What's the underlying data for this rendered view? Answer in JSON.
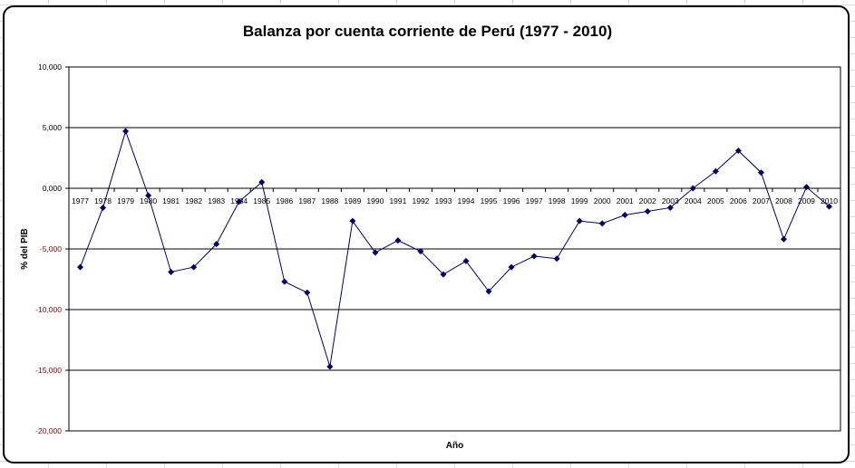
{
  "chart_data": {
    "type": "line",
    "title": "Balanza por cuenta corriente de Perú (1977 - 2010)",
    "xlabel": "Año",
    "ylabel": "% del PIB",
    "ylim": [
      -20,
      10
    ],
    "grid": true,
    "legend": "none",
    "yticks": [
      {
        "value": 10,
        "label": "10,000"
      },
      {
        "value": 5,
        "label": "5,000"
      },
      {
        "value": 0,
        "label": "0,000"
      },
      {
        "value": -5,
        "label": "-5,000"
      },
      {
        "value": -10,
        "label": "-10,000"
      },
      {
        "value": -15,
        "label": "-15,000"
      },
      {
        "value": -20,
        "label": "-20,000"
      }
    ],
    "categories": [
      "1977",
      "1978",
      "1979",
      "1980",
      "1981",
      "1982",
      "1983",
      "1984",
      "1985",
      "1986",
      "1987",
      "1988",
      "1989",
      "1990",
      "1991",
      "1992",
      "1993",
      "1994",
      "1995",
      "1996",
      "1997",
      "1998",
      "1999",
      "2000",
      "2001",
      "2002",
      "2003",
      "2004",
      "2005",
      "2006",
      "2007",
      "2008",
      "2009",
      "2010"
    ],
    "series": [
      {
        "values": [
          -6.5,
          -1.6,
          4.7,
          -0.6,
          -6.9,
          -6.5,
          -4.6,
          -1.1,
          0.5,
          -7.7,
          -8.6,
          -14.7,
          -2.7,
          -5.3,
          -4.3,
          -5.2,
          -7.1,
          -6.0,
          -8.5,
          -6.5,
          -5.6,
          -5.8,
          -2.7,
          -2.9,
          -2.2,
          -1.9,
          -1.6,
          0.0,
          1.4,
          3.1,
          1.3,
          -4.2,
          0.1,
          -1.5
        ]
      }
    ],
    "colors": {
      "line": "#000066",
      "marker": "#000066",
      "positive_tick": "#000000",
      "negative_tick": "#8b0000"
    }
  }
}
